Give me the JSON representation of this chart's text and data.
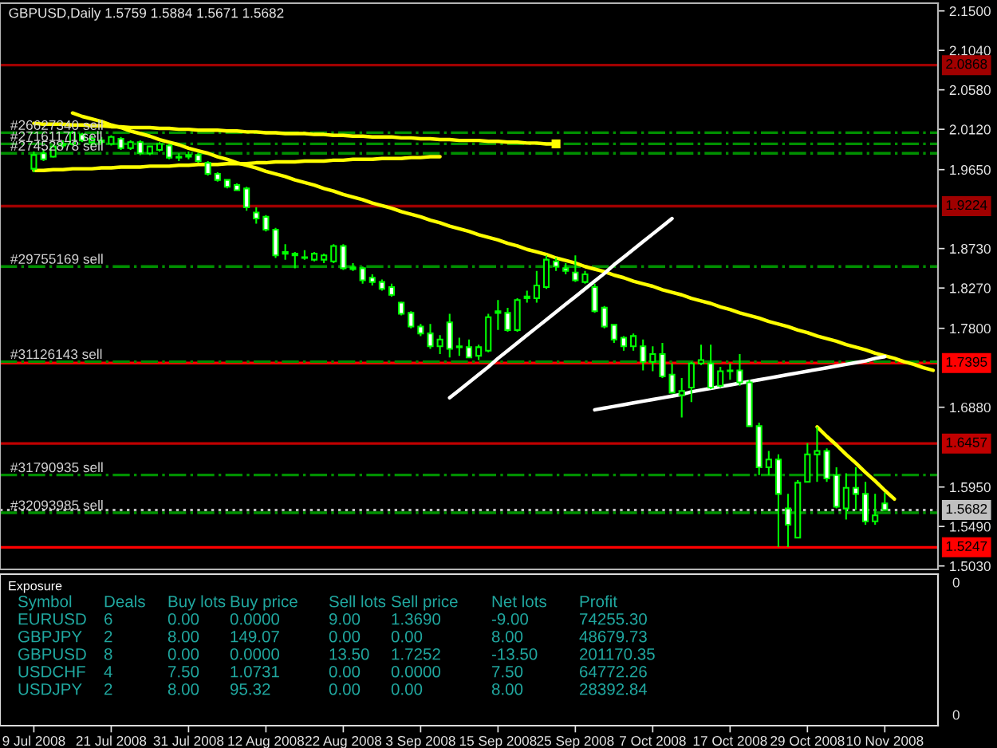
{
  "chart_data": [
    {
      "type": "candlestick",
      "title": "GBPUSD,Daily 1.5759 1.5884 1.5671 1.5682",
      "color": "#00ff00",
      "tick_labels": "y",
      "categories": [
        "9 Jul 2008",
        null,
        null,
        null,
        null,
        null,
        null,
        null,
        "21 Jul 2008",
        null,
        null,
        null,
        null,
        null,
        null,
        null,
        "31 Jul 2008",
        null,
        null,
        null,
        null,
        null,
        null,
        null,
        "12 Aug 2008",
        null,
        null,
        null,
        null,
        null,
        null,
        null,
        "22 Aug 2008",
        null,
        null,
        null,
        null,
        null,
        null,
        null,
        "3 Sep 2008",
        null,
        null,
        null,
        null,
        null,
        null,
        null,
        "15 Sep 2008",
        null,
        null,
        null,
        null,
        null,
        null,
        null,
        "25 Sep 2008",
        null,
        null,
        null,
        null,
        null,
        null,
        null,
        "7 Oct 2008",
        null,
        null,
        null,
        null,
        null,
        null,
        null,
        "17 Oct 2008",
        null,
        null,
        null,
        null,
        null,
        null,
        null,
        "29 Oct 2008",
        null,
        null,
        null,
        null,
        null,
        null,
        null,
        "10 Nov 2008",
        null,
        null,
        null,
        null,
        null
      ],
      "ohlc": [
        [
          1.966,
          1.986,
          1.962,
          1.982
        ],
        [
          1.984,
          1.988,
          1.975,
          1.977
        ],
        [
          1.98,
          1.995,
          1.979,
          1.992
        ],
        [
          1.993,
          1.999,
          1.99,
          1.995
        ],
        [
          1.995,
          2.01,
          1.993,
          2.008
        ],
        [
          2.006,
          2.008,
          1.997,
          1.999
        ],
        [
          1.997,
          2.005,
          1.993,
          2.001
        ],
        [
          1.997,
          2.003,
          1.995,
          1.999
        ],
        [
          1.995,
          2.005,
          1.993,
          2.003
        ],
        [
          2.001,
          2.003,
          1.988,
          1.99
        ],
        [
          1.99,
          1.999,
          1.988,
          1.997
        ],
        [
          1.997,
          1.999,
          1.982,
          1.984
        ],
        [
          1.984,
          1.993,
          1.982,
          1.992
        ],
        [
          1.988,
          1.997,
          1.986,
          1.995
        ],
        [
          1.993,
          1.995,
          1.977,
          1.979
        ],
        [
          1.979,
          1.984,
          1.975,
          1.98
        ],
        [
          1.98,
          1.986,
          1.977,
          1.982
        ],
        [
          1.982,
          1.984,
          1.973,
          1.975
        ],
        [
          1.973,
          1.975,
          1.958,
          1.96
        ],
        [
          1.96,
          1.962,
          1.951,
          1.953
        ],
        [
          1.953,
          1.954,
          1.943,
          1.945
        ],
        [
          1.947,
          1.949,
          1.94,
          1.941
        ],
        [
          1.943,
          1.945,
          1.917,
          1.921
        ],
        [
          1.915,
          1.921,
          1.902,
          1.908
        ],
        [
          1.91,
          1.912,
          1.893,
          1.895
        ],
        [
          1.895,
          1.897,
          1.862,
          1.865
        ],
        [
          1.869,
          1.878,
          1.86,
          1.867
        ],
        [
          1.865,
          1.869,
          1.85,
          1.867
        ],
        [
          1.862,
          1.871,
          1.86,
          1.863
        ],
        [
          1.86,
          1.869,
          1.858,
          1.867
        ],
        [
          1.86,
          1.867,
          1.856,
          1.865
        ],
        [
          1.858,
          1.878,
          1.856,
          1.876
        ],
        [
          1.876,
          1.878,
          1.848,
          1.85
        ],
        [
          1.849,
          1.856,
          1.847,
          1.851
        ],
        [
          1.85,
          1.852,
          1.832,
          1.836
        ],
        [
          1.839,
          1.843,
          1.83,
          1.834
        ],
        [
          1.834,
          1.837,
          1.824,
          1.826
        ],
        [
          1.828,
          1.832,
          1.817,
          1.819
        ],
        [
          1.81,
          1.811,
          1.795,
          1.797
        ],
        [
          1.798,
          1.8,
          1.78,
          1.782
        ],
        [
          1.782,
          1.785,
          1.771,
          1.774
        ],
        [
          1.774,
          1.785,
          1.756,
          1.759
        ],
        [
          1.759,
          1.772,
          1.75,
          1.767
        ],
        [
          1.787,
          1.797,
          1.746,
          1.756
        ],
        [
          1.759,
          1.769,
          1.748,
          1.758
        ],
        [
          1.758,
          1.767,
          1.745,
          1.746
        ],
        [
          1.748,
          1.761,
          1.743,
          1.758
        ],
        [
          1.754,
          1.797,
          1.752,
          1.793
        ],
        [
          1.798,
          1.813,
          1.778,
          1.8
        ],
        [
          1.798,
          1.804,
          1.776,
          1.778
        ],
        [
          1.778,
          1.815,
          1.776,
          1.813
        ],
        [
          1.815,
          1.824,
          1.81,
          1.817
        ],
        [
          1.815,
          1.847,
          1.81,
          1.83
        ],
        [
          1.828,
          1.865,
          1.826,
          1.86
        ],
        [
          1.858,
          1.862,
          1.847,
          1.852
        ],
        [
          1.85,
          1.856,
          1.843,
          1.847
        ],
        [
          1.845,
          1.865,
          1.834,
          1.836
        ],
        [
          1.834,
          1.847,
          1.832,
          1.843
        ],
        [
          1.828,
          1.832,
          1.798,
          1.8
        ],
        [
          1.804,
          1.806,
          1.78,
          1.782
        ],
        [
          1.784,
          1.785,
          1.763,
          1.767
        ],
        [
          1.769,
          1.771,
          1.754,
          1.759
        ],
        [
          1.759,
          1.774,
          1.754,
          1.771
        ],
        [
          1.759,
          1.767,
          1.731,
          1.741
        ],
        [
          1.741,
          1.759,
          1.73,
          1.75
        ],
        [
          1.75,
          1.763,
          1.722,
          1.724
        ],
        [
          1.726,
          1.739,
          1.704,
          1.705
        ],
        [
          1.702,
          1.722,
          1.676,
          1.707
        ],
        [
          1.711,
          1.741,
          1.694,
          1.739
        ],
        [
          1.739,
          1.761,
          1.737,
          1.743
        ],
        [
          1.739,
          1.761,
          1.709,
          1.711
        ],
        [
          1.713,
          1.735,
          1.711,
          1.73
        ],
        [
          1.73,
          1.739,
          1.72,
          1.731
        ],
        [
          1.731,
          1.75,
          1.713,
          1.717
        ],
        [
          1.717,
          1.72,
          1.665,
          1.666
        ],
        [
          1.666,
          1.67,
          1.609,
          1.618
        ],
        [
          1.618,
          1.637,
          1.609,
          1.627
        ],
        [
          1.627,
          1.633,
          1.525,
          1.587
        ],
        [
          1.57,
          1.587,
          1.525,
          1.551
        ],
        [
          1.536,
          1.603,
          1.535,
          1.6
        ],
        [
          1.601,
          1.646,
          1.6,
          1.633
        ],
        [
          1.633,
          1.665,
          1.601,
          1.637
        ],
        [
          1.637,
          1.64,
          1.601,
          1.605
        ],
        [
          1.609,
          1.618,
          1.57,
          1.572
        ],
        [
          1.57,
          1.611,
          1.557,
          1.594
        ],
        [
          1.594,
          1.618,
          1.568,
          1.587
        ],
        [
          1.587,
          1.601,
          1.551,
          1.555
        ],
        [
          1.555,
          1.587,
          1.551,
          1.562
        ],
        [
          1.5759,
          1.5884,
          1.5671,
          1.5682
        ],
        null,
        null,
        null,
        null,
        null
      ],
      "colors": [
        "#000000",
        "#ffffff",
        "#000000",
        "#000000",
        "#000000",
        "#ffffff",
        "#000000",
        "#000000",
        "#000000",
        "#ffffff",
        "#000000",
        "#ffffff",
        "#000000",
        "#000000",
        "#ffffff",
        "#000000",
        "#000000",
        "#ffffff",
        "#ffffff",
        "#ffffff",
        "#ffffff",
        "#ffffff",
        "#ffffff",
        "#ffffff",
        "#ffffff",
        "#ffffff",
        "#ffffff",
        "#000000",
        "#000000",
        "#000000",
        "#000000",
        "#000000",
        "#ffffff",
        "#000000",
        "#ffffff",
        "#ffffff",
        "#ffffff",
        "#ffffff",
        "#ffffff",
        "#ffffff",
        "#ffffff",
        "#ffffff",
        "#000000",
        "#ffffff",
        "#ffffff",
        "#ffffff",
        "#000000",
        "#000000",
        "#000000",
        "#ffffff",
        "#000000",
        "#000000",
        "#000000",
        "#000000",
        "#ffffff",
        "#ffffff",
        "#ffffff",
        "#000000",
        "#ffffff",
        "#ffffff",
        "#ffffff",
        "#ffffff",
        "#000000",
        "#ffffff",
        "#000000",
        "#ffffff",
        "#ffffff",
        "#000000",
        "#000000",
        "#000000",
        "#ffffff",
        "#000000",
        "#000000",
        "#ffffff",
        "#ffffff",
        "#ffffff",
        "#000000",
        "#ffffff",
        "#ffffff",
        "#000000",
        "#000000",
        "#000000",
        "#ffffff",
        "#ffffff",
        "#000000",
        "#ffffff",
        "#ffffff",
        "#000000",
        "#ffffff",
        null,
        null,
        null,
        null,
        null
      ],
      "ylim": [
        1.499,
        2.159
      ],
      "yticks": [
        {
          "value": 2.15,
          "label": "2.1500"
        },
        {
          "value": 2.104,
          "label": "2.1040"
        },
        {
          "value": 2.058,
          "label": "2.0580"
        },
        {
          "value": 2.012,
          "label": "2.0120"
        },
        {
          "value": 1.965,
          "label": "1.9650"
        },
        {
          "value": 1.873,
          "label": "1.8730"
        },
        {
          "value": 1.827,
          "label": "1.8270"
        },
        {
          "value": 1.78,
          "label": "1.7800"
        },
        {
          "value": 1.688,
          "label": "1.6880"
        },
        {
          "value": 1.595,
          "label": "1.5950"
        },
        {
          "value": 1.549,
          "label": "1.5490"
        },
        {
          "value": 1.503,
          "label": "1.5030"
        }
      ],
      "series": [
        {
          "type": "line",
          "color": "#ffff00",
          "values": [
            null,
            null,
            null,
            null,
            2.031,
            2.027,
            2.024,
            2.021,
            2.017,
            2.014,
            2.01,
            2.007,
            2.004,
            2.0,
            1.997,
            1.994,
            1.99,
            1.987,
            1.984,
            1.98,
            1.977,
            1.973,
            1.97,
            1.967,
            1.963,
            1.96,
            1.957,
            1.953,
            1.95,
            1.947,
            1.943,
            1.94,
            1.936,
            1.933,
            1.93,
            1.926,
            1.923,
            1.92,
            1.916,
            1.913,
            1.91,
            1.906,
            1.903,
            1.899,
            1.896,
            1.893,
            1.889,
            1.886,
            1.883,
            1.879,
            1.876,
            1.872,
            1.869,
            1.866,
            1.862,
            1.859,
            1.856,
            1.852,
            1.849,
            1.846,
            1.842,
            1.839,
            1.835,
            1.832,
            1.829,
            1.825,
            1.822,
            1.819,
            1.815,
            1.812,
            1.809,
            1.805,
            1.802,
            1.798,
            1.795,
            1.792,
            1.788,
            1.785,
            1.782,
            1.778,
            1.775,
            1.771,
            1.768,
            1.765,
            1.761,
            1.758,
            1.755,
            1.751,
            1.748,
            1.745,
            1.741,
            1.738,
            1.734,
            1.731
          ]
        },
        {
          "type": "line",
          "color": "#ffff00",
          "values": [
            2.019,
            2.018,
            2.018,
            2.018,
            2.017,
            2.017,
            2.016,
            2.016,
            2.015,
            2.015,
            2.014,
            2.014,
            2.014,
            2.013,
            2.013,
            2.012,
            2.012,
            2.011,
            2.011,
            2.011,
            2.01,
            2.01,
            2.009,
            2.009,
            2.008,
            2.008,
            2.007,
            2.007,
            2.007,
            2.006,
            2.006,
            2.005,
            2.005,
            2.004,
            2.004,
            2.003,
            2.003,
            2.003,
            2.002,
            2.002,
            2.001,
            2.001,
            2.0,
            2.0,
            1.999,
            1.999,
            1.999,
            1.998,
            1.998,
            1.997,
            1.997,
            1.996,
            1.996,
            1.995,
            1.995,
            null,
            null,
            null,
            null,
            null,
            null,
            null,
            null,
            null,
            null,
            null,
            null,
            null,
            null,
            null,
            null,
            null,
            null,
            null,
            null,
            null,
            null,
            null,
            null,
            null,
            null,
            null,
            null,
            null,
            null,
            null,
            null,
            null,
            null,
            null,
            null,
            null,
            null,
            null
          ]
        },
        {
          "type": "scatter",
          "color": "#ffff00",
          "marker": "square",
          "values": [
            null,
            null,
            null,
            null,
            null,
            null,
            null,
            null,
            null,
            null,
            null,
            null,
            null,
            null,
            null,
            null,
            null,
            null,
            null,
            null,
            null,
            null,
            null,
            null,
            null,
            null,
            null,
            null,
            null,
            null,
            null,
            null,
            null,
            null,
            null,
            null,
            null,
            null,
            null,
            null,
            null,
            null,
            null,
            null,
            null,
            null,
            null,
            null,
            null,
            null,
            null,
            null,
            null,
            null,
            1.995,
            null,
            null,
            null,
            null,
            null,
            null,
            null,
            null,
            null,
            null,
            null,
            null,
            null,
            null,
            null,
            null,
            null,
            null,
            null,
            null,
            null,
            null,
            null,
            null,
            null,
            null,
            null,
            null,
            null,
            null,
            null,
            null,
            null,
            null,
            null,
            null,
            null,
            null,
            null
          ]
        },
        {
          "type": "line",
          "color": "#ffff00",
          "values": [
            1.964,
            1.964,
            1.965,
            1.965,
            1.966,
            1.966,
            1.966,
            1.967,
            1.967,
            1.968,
            1.968,
            1.968,
            1.969,
            1.969,
            1.969,
            1.97,
            1.97,
            1.971,
            1.971,
            1.971,
            1.972,
            1.972,
            1.972,
            1.973,
            1.973,
            1.974,
            1.974,
            1.974,
            1.975,
            1.975,
            1.975,
            1.976,
            1.976,
            1.977,
            1.977,
            1.977,
            1.978,
            1.978,
            1.978,
            1.979,
            1.979,
            1.98,
            1.98,
            null,
            null,
            null,
            null,
            null,
            null,
            null,
            null,
            null,
            null,
            null,
            null,
            null,
            null,
            null,
            null,
            null,
            null,
            null,
            null,
            null,
            null,
            null,
            null,
            null,
            null,
            null,
            null,
            null,
            null,
            null,
            null,
            null,
            null,
            null,
            null,
            null,
            null,
            null,
            null,
            null,
            null,
            null,
            null,
            null,
            null,
            null,
            null,
            null,
            null,
            null
          ]
        },
        {
          "type": "line",
          "color": "#ffff00",
          "values": [
            null,
            null,
            null,
            null,
            null,
            null,
            null,
            null,
            null,
            null,
            null,
            null,
            null,
            null,
            null,
            null,
            null,
            null,
            null,
            null,
            null,
            null,
            null,
            null,
            null,
            null,
            null,
            null,
            null,
            null,
            null,
            null,
            null,
            null,
            null,
            null,
            null,
            null,
            null,
            null,
            null,
            null,
            null,
            null,
            null,
            null,
            null,
            null,
            null,
            null,
            null,
            null,
            null,
            null,
            null,
            null,
            null,
            null,
            null,
            null,
            null,
            null,
            null,
            null,
            null,
            null,
            null,
            null,
            null,
            null,
            null,
            null,
            null,
            null,
            null,
            null,
            null,
            null,
            null,
            null,
            null,
            1.665,
            1.654,
            1.644,
            1.633,
            1.623,
            1.612,
            1.602,
            1.591,
            1.581,
            null,
            null,
            null,
            null
          ]
        },
        {
          "type": "line",
          "color": "#ffffff",
          "values": [
            null,
            null,
            null,
            null,
            null,
            null,
            null,
            null,
            null,
            null,
            null,
            null,
            null,
            null,
            null,
            null,
            null,
            null,
            null,
            null,
            null,
            null,
            null,
            null,
            null,
            null,
            null,
            null,
            null,
            null,
            null,
            null,
            null,
            null,
            null,
            null,
            null,
            null,
            null,
            null,
            null,
            null,
            null,
            1.699,
            1.708,
            1.717,
            1.726,
            1.735,
            1.745,
            1.754,
            1.763,
            1.772,
            1.781,
            1.79,
            1.799,
            1.808,
            1.817,
            1.826,
            1.835,
            1.844,
            1.854,
            1.863,
            1.872,
            1.881,
            1.89,
            1.899,
            1.908,
            null,
            null,
            null,
            null,
            null,
            null,
            null,
            null,
            null,
            null,
            null,
            null,
            null,
            null,
            null,
            null,
            null,
            null,
            null,
            null,
            null,
            null,
            null,
            null,
            null,
            null,
            null
          ]
        },
        {
          "type": "line",
          "color": "#ffffff",
          "values": [
            null,
            null,
            null,
            null,
            null,
            null,
            null,
            null,
            null,
            null,
            null,
            null,
            null,
            null,
            null,
            null,
            null,
            null,
            null,
            null,
            null,
            null,
            null,
            null,
            null,
            null,
            null,
            null,
            null,
            null,
            null,
            null,
            null,
            null,
            null,
            null,
            null,
            null,
            null,
            null,
            null,
            null,
            null,
            null,
            null,
            null,
            null,
            null,
            null,
            null,
            null,
            null,
            null,
            null,
            null,
            null,
            null,
            null,
            1.685,
            1.687,
            1.689,
            1.691,
            1.693,
            1.695,
            1.697,
            1.699,
            1.701,
            1.703,
            1.706,
            1.708,
            1.71,
            1.712,
            1.714,
            1.716,
            1.718,
            1.72,
            1.722,
            1.724,
            1.726,
            1.728,
            1.73,
            1.732,
            1.734,
            1.736,
            1.738,
            1.74,
            1.742,
            1.745,
            1.747,
            null,
            null,
            null,
            null,
            null
          ]
        }
      ],
      "ref_lines": [
        {
          "axis": "y",
          "value": 2.0868,
          "label": "2.0868",
          "color": "#a00000"
        },
        {
          "axis": "y",
          "value": 1.9224,
          "label": "1.9224",
          "color": "#a00000"
        },
        {
          "axis": "y",
          "value": 1.7395,
          "label": "1.7395",
          "color": "#ff0000"
        },
        {
          "axis": "y",
          "value": 1.6457,
          "label": "1.6457",
          "color": "#c00000"
        },
        {
          "axis": "y",
          "value": 1.5247,
          "label": "1.5247",
          "color": "#ff0000"
        },
        {
          "axis": "y",
          "value": 1.5682,
          "label": "1.5682",
          "color": "#c0c0c0",
          "line_style": "dotted"
        },
        {
          "axis": "y",
          "value": 2.008,
          "label": "#26627340 sell",
          "color": "#009000",
          "line_style": "dashdot"
        },
        {
          "axis": "y",
          "value": 1.995,
          "label": "#27161171 sell",
          "color": "#009000",
          "line_style": "dashdot"
        },
        {
          "axis": "y",
          "value": 1.984,
          "label": "#27452878 sell",
          "color": "#009000",
          "line_style": "dashdot"
        },
        {
          "axis": "y",
          "value": 1.852,
          "label": "#29755169 sell",
          "color": "#009000",
          "line_style": "dashdot"
        },
        {
          "axis": "y",
          "value": 1.741,
          "label": "#31126143 sell",
          "color": "#009000",
          "line_style": "dashdot"
        },
        {
          "axis": "y",
          "value": 1.609,
          "label": "#31790935 sell",
          "color": "#009000",
          "line_style": "dashdot"
        },
        {
          "axis": "y",
          "value": 1.565,
          "label": "#32093985 sell",
          "color": "#009000",
          "line_style": "dashdot"
        }
      ]
    },
    {
      "type": "other",
      "title": "Exposure",
      "color": "#20a8a0",
      "cell_labels": [
        [
          "Symbol",
          "Deals",
          "Buy lots",
          "Buy price",
          "Sell lots",
          "Sell price",
          "Net lots",
          "Profit"
        ],
        [
          "EURUSD",
          "6",
          "0.00",
          "0.0000",
          "9.00",
          "1.3690",
          "-9.00",
          "74255.30"
        ],
        [
          "GBPJPY",
          "2",
          "8.00",
          "149.07",
          "0.00",
          "0.00",
          "8.00",
          "48679.73"
        ],
        [
          "GBPUSD",
          "8",
          "0.00",
          "0.0000",
          "13.50",
          "1.7252",
          "-13.50",
          "201170.35"
        ],
        [
          "USDCHF",
          "4",
          "7.50",
          "1.0731",
          "0.00",
          "0.0000",
          "7.50",
          "64772.26"
        ],
        [
          "USDJPY",
          "2",
          "8.00",
          "95.32",
          "0.00",
          "0.00",
          "8.00",
          "28392.84"
        ]
      ],
      "annotations": [
        "0",
        "0"
      ]
    }
  ]
}
